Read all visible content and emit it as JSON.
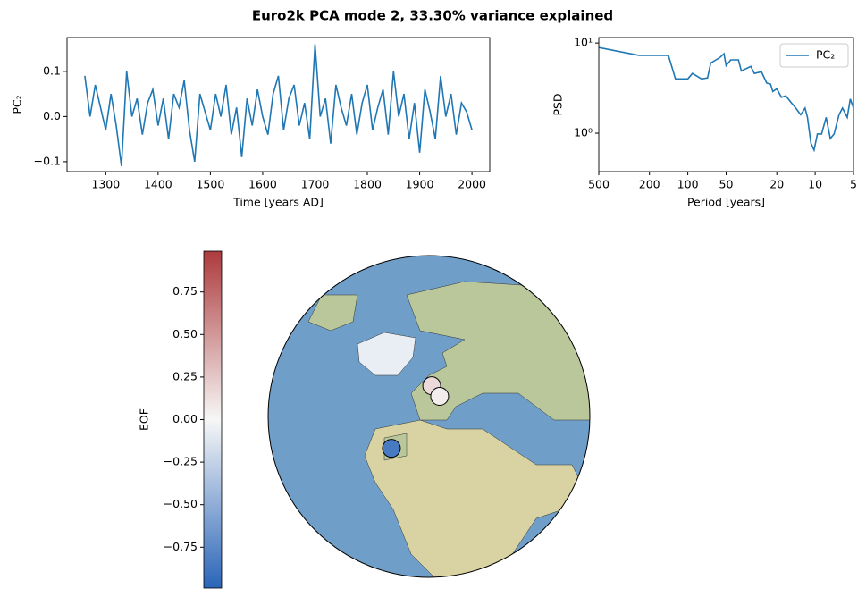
{
  "title": "Euro2k PCA mode 2, 33.30% variance explained",
  "chart_data": [
    {
      "type": "line",
      "ylabel": "PC₂",
      "xlabel": "Time [years AD]",
      "color": "#1f77b4",
      "x": [
        1260,
        1270,
        1280,
        1290,
        1300,
        1310,
        1320,
        1330,
        1340,
        1350,
        1360,
        1370,
        1380,
        1390,
        1400,
        1410,
        1420,
        1430,
        1440,
        1450,
        1460,
        1470,
        1480,
        1490,
        1500,
        1510,
        1520,
        1530,
        1540,
        1550,
        1560,
        1570,
        1580,
        1590,
        1600,
        1610,
        1620,
        1630,
        1640,
        1650,
        1660,
        1670,
        1680,
        1690,
        1700,
        1710,
        1720,
        1730,
        1740,
        1750,
        1760,
        1770,
        1780,
        1790,
        1800,
        1810,
        1820,
        1830,
        1840,
        1850,
        1860,
        1870,
        1880,
        1890,
        1900,
        1910,
        1920,
        1930,
        1940,
        1950,
        1960,
        1970,
        1980,
        1990,
        2000
      ],
      "values": [
        0.09,
        0.0,
        0.07,
        0.02,
        -0.03,
        0.05,
        -0.02,
        -0.11,
        0.1,
        0.0,
        0.04,
        -0.04,
        0.03,
        0.06,
        -0.02,
        0.04,
        -0.05,
        0.05,
        0.02,
        0.08,
        -0.03,
        -0.1,
        0.05,
        0.01,
        -0.03,
        0.05,
        0.0,
        0.07,
        -0.04,
        0.02,
        -0.09,
        0.04,
        -0.02,
        0.06,
        0.0,
        -0.04,
        0.05,
        0.09,
        -0.03,
        0.04,
        0.07,
        -0.02,
        0.03,
        -0.05,
        0.16,
        0.0,
        0.04,
        -0.06,
        0.07,
        0.02,
        -0.02,
        0.05,
        -0.04,
        0.03,
        0.07,
        -0.03,
        0.02,
        0.06,
        -0.04,
        0.1,
        0.0,
        0.05,
        -0.05,
        0.03,
        -0.08,
        0.06,
        0.01,
        -0.05,
        0.09,
        0.0,
        0.05,
        -0.04,
        0.03,
        0.01,
        -0.03
      ],
      "xlim": [
        1226,
        2034
      ],
      "xticks": [
        1300,
        1400,
        1500,
        1600,
        1700,
        1800,
        1900,
        2000
      ],
      "ylim": [
        -0.122,
        0.175
      ],
      "yticks": [
        {
          "value": -0.1,
          "label": "−0.1"
        },
        {
          "value": 0,
          "label": "0.0"
        },
        0.1
      ]
    },
    {
      "type": "line",
      "ylabel": "PSD",
      "xlabel": "Period [years]",
      "log_x": true,
      "log_y": true,
      "legend": "upper right",
      "x": [
        500,
        242,
        142,
        125,
        100,
        92,
        78,
        70,
        66,
        56,
        52,
        50,
        46,
        40,
        38,
        32,
        30,
        26.4,
        24,
        22.4,
        21.5,
        20,
        18.4,
        17,
        15.5,
        14.2,
        13,
        12,
        11.5,
        10.8,
        10.2,
        9.6,
        8.9,
        8.2,
        7.6,
        7.1,
        6.5,
        6.1,
        5.6,
        5.3,
        5
      ],
      "series": [
        {
          "name": "PC₂",
          "color": "#1f77b4",
          "values": [
            8.9,
            7.3,
            7.3,
            4.0,
            4.0,
            4.6,
            4.0,
            4.1,
            6.0,
            6.9,
            7.6,
            5.6,
            6.5,
            6.5,
            4.9,
            5.5,
            4.6,
            4.8,
            3.6,
            3.5,
            2.9,
            3.1,
            2.5,
            2.6,
            2.2,
            1.9,
            1.6,
            1.9,
            1.5,
            0.78,
            0.65,
            0.98,
            0.98,
            1.5,
            0.87,
            0.98,
            1.6,
            1.9,
            1.5,
            2.4,
            1.9
          ]
        }
      ],
      "xlim": [
        500,
        5
      ],
      "xticks": [
        500,
        200,
        100,
        50,
        20,
        10,
        5
      ],
      "ylim": [
        0.375,
        11.5
      ],
      "yticks": [
        {
          "value": 1,
          "label": "10⁰"
        },
        {
          "value": 10,
          "label": "10¹"
        }
      ]
    },
    {
      "type": "map",
      "colorbar_label": "EOF",
      "colors": [
        "#2a65b8",
        "#f7f7f7",
        "#ad3a3c"
      ],
      "lat": [
        61,
        57,
        37
      ],
      "lon": [
        17,
        22,
        -2
      ],
      "values": [
        0.15,
        0.05,
        -0.85
      ],
      "clim": [
        -0.99,
        0.99
      ],
      "cticks": [
        {
          "value": -0.75,
          "label": "−0.75"
        },
        {
          "value": -0.5,
          "label": "−0.50"
        },
        {
          "value": -0.25,
          "label": "−0.25"
        },
        {
          "value": 0,
          "label": "0.00"
        },
        0.25,
        {
          "value": 0.5,
          "label": "0.50"
        },
        0.75
      ]
    }
  ]
}
